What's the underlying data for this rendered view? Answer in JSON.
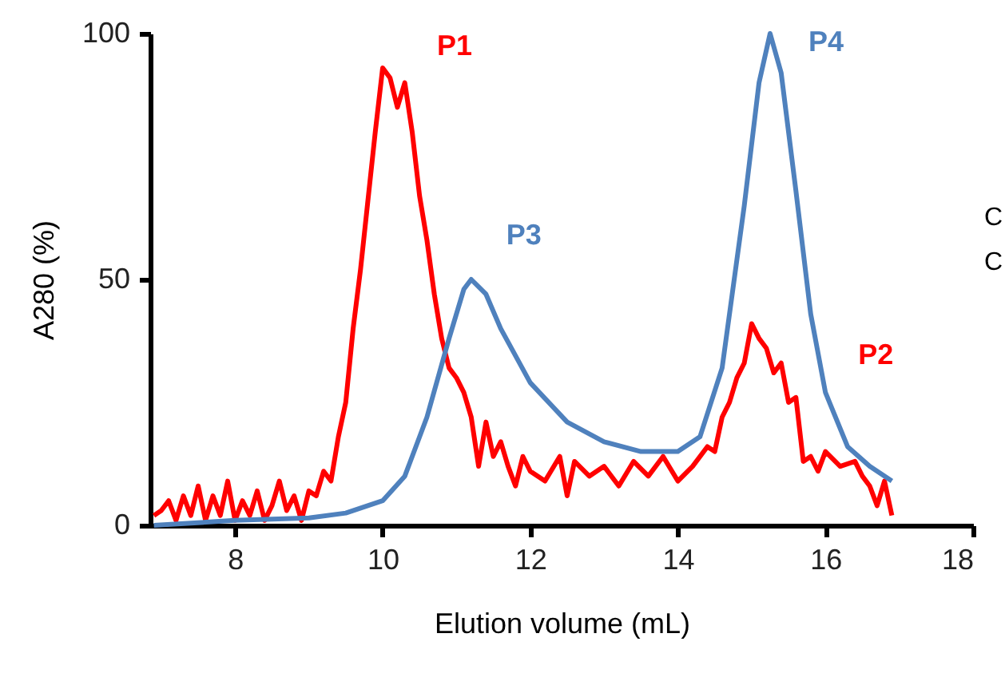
{
  "chart_data": {
    "type": "line",
    "xlabel": "Elution volume (mL)",
    "ylabel": "A280 (%)",
    "xlim": [
      6.85,
      18
    ],
    "xticks": [
      8,
      10,
      12,
      14,
      16,
      18
    ],
    "ylim": [
      0,
      100
    ],
    "yticks": [
      0,
      50,
      100
    ],
    "grid": false,
    "marker": "none",
    "line_style": "solid",
    "series": [
      {
        "color": "#ff0000",
        "x": [
          6.9,
          7.0,
          7.1,
          7.2,
          7.3,
          7.4,
          7.5,
          7.6,
          7.7,
          7.8,
          7.9,
          8.0,
          8.1,
          8.2,
          8.3,
          8.4,
          8.5,
          8.6,
          8.7,
          8.8,
          8.9,
          9.0,
          9.1,
          9.2,
          9.3,
          9.4,
          9.5,
          9.6,
          9.7,
          9.8,
          9.9,
          10.0,
          10.1,
          10.2,
          10.3,
          10.4,
          10.5,
          10.6,
          10.7,
          10.8,
          10.9,
          11.0,
          11.1,
          11.2,
          11.3,
          11.4,
          11.5,
          11.6,
          11.7,
          11.8,
          11.9,
          12.0,
          12.2,
          12.4,
          12.5,
          12.6,
          12.8,
          13.0,
          13.2,
          13.4,
          13.6,
          13.8,
          14.0,
          14.2,
          14.4,
          14.5,
          14.6,
          14.7,
          14.8,
          14.9,
          15.0,
          15.1,
          15.2,
          15.3,
          15.4,
          15.5,
          15.6,
          15.7,
          15.8,
          15.9,
          16.0,
          16.2,
          16.4,
          16.5,
          16.6,
          16.7,
          16.8,
          16.9
        ],
        "values": [
          2,
          3,
          5,
          1,
          6,
          2,
          8,
          1,
          6,
          2,
          9,
          1,
          5,
          2,
          7,
          1,
          4,
          9,
          3,
          6,
          1,
          7,
          6,
          11,
          9,
          18,
          25,
          40,
          52,
          66,
          80,
          93,
          91,
          85,
          90,
          80,
          67,
          58,
          47,
          38,
          32,
          30,
          27,
          22,
          12,
          21,
          14,
          17,
          12,
          8,
          14,
          11,
          9,
          14,
          6,
          13,
          10,
          12,
          8,
          13,
          10,
          14,
          9,
          12,
          16,
          15,
          22,
          25,
          30,
          33,
          41,
          38,
          36,
          31,
          33,
          25,
          26,
          13,
          14,
          11,
          15,
          12,
          13,
          10,
          8,
          4,
          9,
          2
        ]
      },
      {
        "color": "#4f81bd",
        "x": [
          6.9,
          8,
          9,
          9.5,
          10,
          10.3,
          10.6,
          10.9,
          11.1,
          11.2,
          11.4,
          11.6,
          12,
          12.5,
          13,
          13.5,
          14,
          14.3,
          14.6,
          14.9,
          15.1,
          15.25,
          15.4,
          15.6,
          15.8,
          16,
          16.3,
          16.6,
          16.9
        ],
        "values": [
          0,
          1,
          1.5,
          2.5,
          5,
          10,
          22,
          38,
          48,
          50,
          47,
          40,
          29,
          21,
          17,
          15,
          15,
          18,
          32,
          65,
          90,
          100,
          92,
          68,
          43,
          27,
          16,
          12,
          9
        ]
      }
    ],
    "annotations": [
      {
        "text": "P1",
        "x": 10.0,
        "y": 93
      },
      {
        "text": "P2",
        "x": 15.6,
        "y": 26
      },
      {
        "text": "P3",
        "x": 11.2,
        "y": 50
      },
      {
        "text": "P4",
        "x": 15.25,
        "y": 100
      },
      "C",
      "C"
    ]
  }
}
